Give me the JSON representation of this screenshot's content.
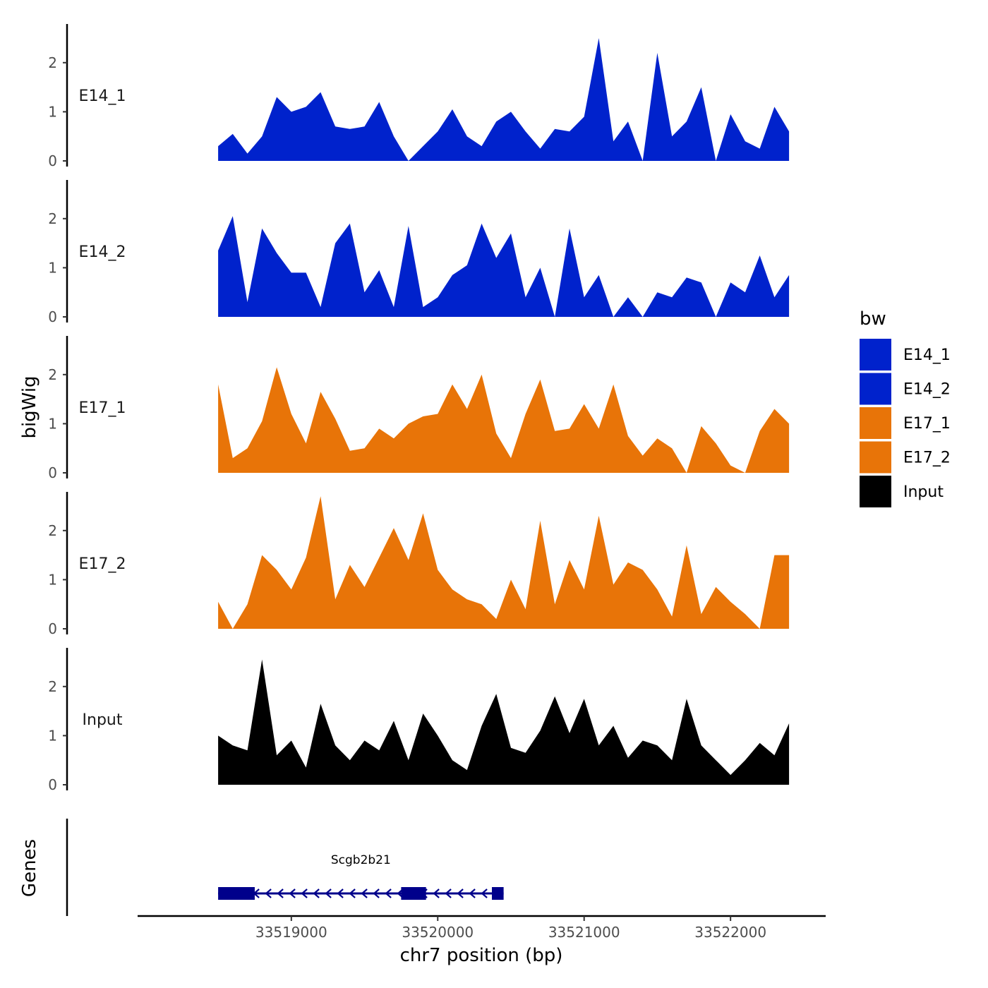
{
  "chart_data": {
    "type": "area",
    "ylabel": "bigWig",
    "genes_label": "Genes",
    "xlabel": "chr7 position (bp)",
    "xlim": [
      33517950,
      33522650
    ],
    "ylim": [
      0,
      2.75
    ],
    "x_ticks": [
      33519000,
      33520000,
      33521000,
      33522000
    ],
    "x_tick_labels": [
      "33519000",
      "33520000",
      "33521000",
      "33522000"
    ],
    "y_ticks": [
      0,
      1,
      2
    ],
    "y_tick_labels": [
      "0",
      "1",
      "2"
    ],
    "legend_title": "bw",
    "legend": [
      {
        "name": "E14_1",
        "color": "#0022CC"
      },
      {
        "name": "E14_2",
        "color": "#0022CC"
      },
      {
        "name": "E17_1",
        "color": "#E87408"
      },
      {
        "name": "E17_2",
        "color": "#E87408"
      },
      {
        "name": "Input",
        "color": "#000000"
      }
    ],
    "x": [
      33518500,
      33518600,
      33518700,
      33518800,
      33518900,
      33519000,
      33519100,
      33519200,
      33519300,
      33519400,
      33519500,
      33519600,
      33519700,
      33519800,
      33519900,
      33520000,
      33520100,
      33520200,
      33520300,
      33520400,
      33520500,
      33520600,
      33520700,
      33520800,
      33520900,
      33521000,
      33521100,
      33521200,
      33521300,
      33521400,
      33521500,
      33521600,
      33521700,
      33521800,
      33521900,
      33522000,
      33522100,
      33522200,
      33522300,
      33522400
    ],
    "series": [
      {
        "name": "E14_1",
        "color": "#0022CC",
        "values": [
          0.3,
          0.55,
          0.15,
          0.5,
          1.3,
          1.0,
          1.1,
          1.4,
          0.7,
          0.65,
          0.7,
          1.2,
          0.5,
          0.0,
          0.3,
          0.6,
          1.05,
          0.5,
          0.3,
          0.8,
          1.0,
          0.6,
          0.25,
          0.65,
          0.6,
          0.9,
          2.5,
          0.4,
          0.8,
          0.0,
          2.2,
          0.5,
          0.8,
          1.5,
          0.0,
          0.95,
          0.4,
          0.25,
          1.1,
          0.6
        ]
      },
      {
        "name": "E14_2",
        "color": "#0022CC",
        "values": [
          1.35,
          2.05,
          0.3,
          1.8,
          1.3,
          0.9,
          0.9,
          0.2,
          1.5,
          1.9,
          0.5,
          0.95,
          0.2,
          1.85,
          0.2,
          0.4,
          0.85,
          1.05,
          1.9,
          1.2,
          1.7,
          0.4,
          1.0,
          0.0,
          1.8,
          0.4,
          0.85,
          0.0,
          0.4,
          0.0,
          0.5,
          0.4,
          0.8,
          0.7,
          0.0,
          0.7,
          0.5,
          1.25,
          0.4,
          0.85
        ]
      },
      {
        "name": "E17_1",
        "color": "#E87408",
        "values": [
          1.8,
          0.3,
          0.5,
          1.05,
          2.15,
          1.2,
          0.6,
          1.65,
          1.1,
          0.45,
          0.5,
          0.9,
          0.7,
          1.0,
          1.15,
          1.2,
          1.8,
          1.3,
          2.0,
          0.8,
          0.3,
          1.2,
          1.9,
          0.85,
          0.9,
          1.4,
          0.9,
          1.8,
          0.75,
          0.35,
          0.7,
          0.5,
          0.0,
          0.95,
          0.6,
          0.15,
          0.0,
          0.85,
          1.3,
          1.0
        ]
      },
      {
        "name": "E17_2",
        "color": "#E87408",
        "values": [
          0.55,
          0.0,
          0.5,
          1.5,
          1.2,
          0.8,
          1.45,
          2.7,
          0.6,
          1.3,
          0.85,
          1.45,
          2.05,
          1.4,
          2.35,
          1.2,
          0.8,
          0.6,
          0.5,
          0.2,
          1.0,
          0.4,
          2.2,
          0.5,
          1.4,
          0.8,
          2.3,
          0.9,
          1.35,
          1.2,
          0.8,
          0.25,
          1.7,
          0.3,
          0.85,
          0.55,
          0.3,
          0.0,
          1.5,
          1.5
        ]
      },
      {
        "name": "Input",
        "color": "#000000",
        "values": [
          1.0,
          0.8,
          0.7,
          2.55,
          0.6,
          0.9,
          0.35,
          1.65,
          0.8,
          0.5,
          0.9,
          0.7,
          1.3,
          0.5,
          1.45,
          1.0,
          0.5,
          0.3,
          1.2,
          1.85,
          0.75,
          0.65,
          1.1,
          1.8,
          1.05,
          1.75,
          0.8,
          1.2,
          0.55,
          0.9,
          0.8,
          0.5,
          1.75,
          0.8,
          0.5,
          0.2,
          0.5,
          0.85,
          0.6,
          1.25
        ]
      }
    ],
    "gene": {
      "name": "Scgb2b21",
      "strand": "-",
      "start": 33518500,
      "end": 33520450,
      "exons": [
        [
          33518500,
          33518750
        ],
        [
          33519750,
          33519920
        ],
        [
          33520370,
          33520450
        ]
      ],
      "color": "#00008B"
    }
  }
}
